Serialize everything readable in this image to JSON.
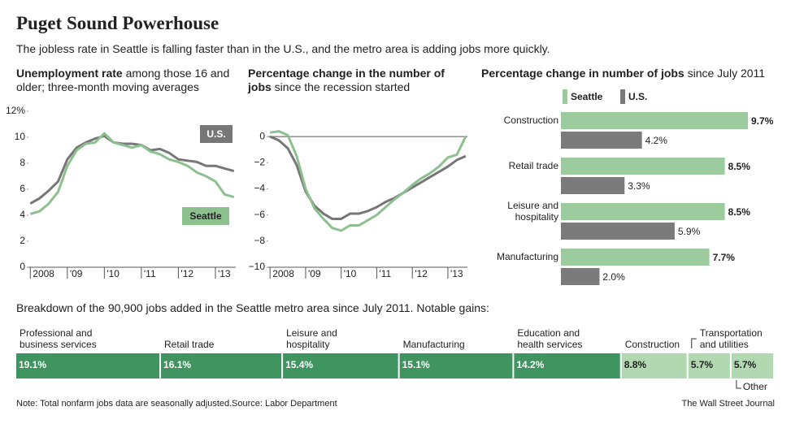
{
  "title": "Puget Sound Powerhouse",
  "subtitle": "The jobless rate in Seattle is falling faster than in the U.S., and the metro area is adding jobs more quickly.",
  "chart_data": [
    {
      "type": "line",
      "title": "Unemployment rate",
      "subtitle": "among those 16 and older; three-month moving averages",
      "x": [
        2008,
        2008.25,
        2008.5,
        2008.75,
        2009,
        2009.25,
        2009.5,
        2009.75,
        2010,
        2010.25,
        2010.5,
        2010.75,
        2011,
        2011.25,
        2011.5,
        2011.75,
        2012,
        2012.25,
        2012.5,
        2012.75,
        2013,
        2013.25,
        2013.5
      ],
      "series": [
        {
          "name": "U.S.",
          "color": "#777777",
          "values": [
            4.9,
            5.3,
            5.9,
            6.6,
            8.3,
            9.2,
            9.6,
            9.9,
            10.1,
            9.6,
            9.5,
            9.5,
            9.4,
            9.0,
            9.1,
            8.8,
            8.3,
            8.2,
            8.1,
            7.8,
            7.8,
            7.6,
            7.4
          ]
        },
        {
          "name": "Seattle",
          "color": "#8dc08f",
          "values": [
            4.1,
            4.3,
            4.9,
            5.8,
            7.8,
            9.0,
            9.5,
            9.6,
            10.3,
            9.6,
            9.4,
            9.2,
            9.4,
            8.9,
            8.7,
            8.3,
            8.1,
            7.8,
            7.3,
            7.0,
            6.6,
            5.6,
            5.4
          ]
        }
      ],
      "xlim": [
        2007.95,
        2013.55
      ],
      "xticks": [
        {
          "value": 2008,
          "label": "2008"
        },
        {
          "value": 2009,
          "label": "'09"
        },
        {
          "value": 2010,
          "label": "'10"
        },
        {
          "value": 2011,
          "label": "'11"
        },
        {
          "value": 2012,
          "label": "'12"
        },
        {
          "value": 2013,
          "label": "'13"
        }
      ],
      "ylim": [
        0,
        12
      ],
      "yticks": [
        0,
        2,
        4,
        6,
        8,
        10,
        {
          "value": 12,
          "label": "12%"
        }
      ]
    },
    {
      "type": "line",
      "title": "Percentage change in the number of jobs",
      "subtitle": "since the recession started",
      "x": [
        2008,
        2008.25,
        2008.5,
        2008.75,
        2009,
        2009.25,
        2009.5,
        2009.75,
        2010,
        2010.25,
        2010.5,
        2010.75,
        2011,
        2011.25,
        2011.5,
        2011.75,
        2012,
        2012.25,
        2012.5,
        2012.75,
        2013,
        2013.25,
        2013.5
      ],
      "series": [
        {
          "name": "U.S.",
          "color": "#777777",
          "values": [
            0.0,
            -0.3,
            -0.9,
            -2.2,
            -4.2,
            -5.3,
            -5.9,
            -6.3,
            -6.3,
            -5.9,
            -5.9,
            -5.7,
            -5.4,
            -5.0,
            -4.7,
            -4.3,
            -3.9,
            -3.5,
            -3.1,
            -2.7,
            -2.3,
            -1.8,
            -1.5
          ]
        },
        {
          "name": "Seattle",
          "color": "#8dc08f",
          "values": [
            0.3,
            0.4,
            0.1,
            -1.5,
            -4.0,
            -5.5,
            -6.3,
            -7.0,
            -7.2,
            -6.8,
            -6.8,
            -6.4,
            -6.0,
            -5.4,
            -4.8,
            -4.3,
            -3.7,
            -3.2,
            -2.8,
            -2.3,
            -1.6,
            -1.4,
            0.0
          ]
        }
      ],
      "xlim": [
        2007.95,
        2013.55
      ],
      "xticks": [
        {
          "value": 2008,
          "label": "2008"
        },
        {
          "value": 2009,
          "label": "'09"
        },
        {
          "value": 2010,
          "label": "'10"
        },
        {
          "value": 2011,
          "label": "'11"
        },
        {
          "value": 2012,
          "label": "'12"
        },
        {
          "value": 2013,
          "label": "'13"
        }
      ],
      "ylim": [
        -10,
        1
      ],
      "yticks": [
        {
          "value": -10,
          "label": "−10"
        },
        {
          "value": -8,
          "label": "−8"
        },
        {
          "value": -6,
          "label": "−6"
        },
        {
          "value": -4,
          "label": "−4"
        },
        {
          "value": -2,
          "label": "−2"
        },
        0
      ]
    },
    {
      "type": "bar",
      "orientation": "horizontal",
      "title": "Percentage change in number of jobs",
      "subtitle": "since July 2011",
      "categories": [
        "Construction",
        "Retail trade",
        "Leisure and hospitality",
        "Manufacturing"
      ],
      "series": [
        {
          "name": "Seattle",
          "color": "#9ccc9e",
          "values": [
            9.7,
            8.5,
            8.5,
            7.7
          ],
          "value_labels": [
            "9.7%",
            "8.5%",
            "8.5%",
            "7.7%"
          ]
        },
        {
          "name": "U.S.",
          "color": "#7a7a7a",
          "values": [
            4.2,
            3.3,
            5.9,
            2.0
          ],
          "value_labels": [
            "4.2%",
            "3.3%",
            "5.9%",
            "2.0%"
          ]
        }
      ]
    },
    {
      "type": "bar",
      "stacked": true,
      "title": "Breakdown of the 90,900 jobs added in the Seattle metro area since July 2011. Notable gains:",
      "categories": [
        "Professional and business services",
        "Retail trade",
        "Leisure and hospitality",
        "Manufacturing",
        "Education and health services",
        "Construction",
        "Transportation and utilities",
        "Other"
      ],
      "values": [
        19.1,
        16.1,
        15.4,
        15.1,
        14.2,
        8.8,
        5.7,
        5.7
      ],
      "value_labels": [
        "19.1%",
        "16.1%",
        "15.4%",
        "15.1%",
        "14.2%",
        "8.8%",
        "5.7%",
        "5.7%"
      ],
      "colors": [
        "#3f9460",
        "#3f9460",
        "#3f9460",
        "#3f9460",
        "#3f9460",
        "#b2d8b2",
        "#b2d8b2",
        "#b2d8b2"
      ]
    }
  ],
  "note": "Note: Total nonfarm jobs data are seasonally adjusted.",
  "source": "Source:  Labor Department",
  "credit": "The Wall Street Journal"
}
